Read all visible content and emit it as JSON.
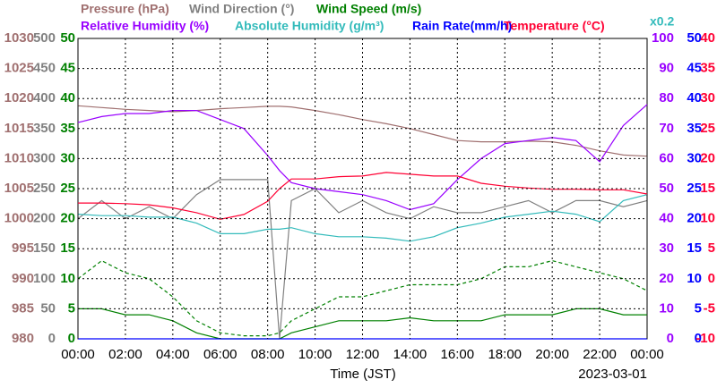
{
  "chart_data": {
    "type": "line",
    "x": [
      0,
      1,
      2,
      3,
      4,
      5,
      6,
      7,
      8,
      8.5,
      9,
      10,
      11,
      12,
      13,
      14,
      15,
      16,
      17,
      18,
      19,
      20,
      21,
      22,
      23,
      24
    ],
    "xlim": [
      0,
      24
    ],
    "xticks": [
      {
        "value": 0,
        "label": "00:00"
      },
      {
        "value": 2,
        "label": "02:00"
      },
      {
        "value": 4,
        "label": "04:00"
      },
      {
        "value": 6,
        "label": "06:00"
      },
      {
        "value": 8,
        "label": "08:00"
      },
      {
        "value": 10,
        "label": "10:00"
      },
      {
        "value": 12,
        "label": "12:00"
      },
      {
        "value": 14,
        "label": "14:00"
      },
      {
        "value": 16,
        "label": "16:00"
      },
      {
        "value": 18,
        "label": "18:00"
      },
      {
        "value": 20,
        "label": "20:00"
      },
      {
        "value": 22,
        "label": "22:00"
      },
      {
        "value": 24,
        "label": "00:00"
      }
    ],
    "xlabel": "Time (JST)",
    "date": "2023-03-01",
    "grid": true,
    "axes": [
      {
        "side": "left",
        "color": "#a07070",
        "lim": [
          980,
          1030
        ],
        "ticks": [
          980,
          985,
          990,
          995,
          1000,
          1005,
          1010,
          1015,
          1020,
          1025,
          1030
        ]
      },
      {
        "side": "left",
        "color": "#808080",
        "lim": [
          0,
          500
        ],
        "ticks": [
          0,
          50,
          100,
          150,
          200,
          250,
          300,
          350,
          400,
          450,
          500
        ]
      },
      {
        "side": "left",
        "color": "#008000",
        "lim": [
          0,
          50
        ],
        "ticks": [
          0,
          5,
          10,
          15,
          20,
          25,
          30,
          35,
          40,
          45,
          50
        ]
      },
      {
        "side": "right",
        "color": "#9900ff",
        "lim": [
          0,
          100
        ],
        "ticks": [
          0,
          10,
          20,
          30,
          40,
          50,
          60,
          70,
          80,
          90,
          100
        ]
      },
      {
        "side": "right",
        "color": "#33bbbb",
        "lim": [
          0,
          20
        ],
        "ticks": [],
        "scale_label": "x0.2"
      },
      {
        "side": "right",
        "color": "#0000ff",
        "lim": [
          0,
          50
        ],
        "ticks": [
          0,
          5,
          10,
          15,
          20,
          25,
          30,
          35,
          40,
          45,
          50
        ]
      },
      {
        "side": "right",
        "color": "#ff0033",
        "lim": [
          -10,
          40
        ],
        "ticks": [
          -10,
          -5,
          0,
          5,
          10,
          15,
          20,
          25,
          30,
          35,
          40
        ]
      }
    ],
    "series": [
      {
        "name": "Wind Direction (°)",
        "color": "#808080",
        "axis": 1,
        "values": [
          200,
          230,
          200,
          220,
          200,
          240,
          265,
          265,
          265,
          0,
          230,
          250,
          210,
          230,
          210,
          200,
          220,
          210,
          210,
          220,
          230,
          210,
          230,
          230,
          220,
          230
        ]
      },
      {
        "name": "Pressure (hPa)",
        "color": "#a07070",
        "axis": 0,
        "values": [
          1018.8,
          1018.5,
          1018.2,
          1018.0,
          1017.8,
          1018.0,
          1018.3,
          1018.5,
          1018.7,
          1018.7,
          1018.6,
          1018.0,
          1017.3,
          1016.5,
          1015.8,
          1015.0,
          1014.0,
          1013.0,
          1012.8,
          1012.8,
          1012.9,
          1012.8,
          1012.2,
          1011.3,
          1010.6,
          1010.4
        ]
      },
      {
        "name": "Relative Humidity (%)",
        "color": "#9900ff",
        "axis": 3,
        "values": [
          72,
          74,
          75,
          75,
          76,
          76,
          73,
          70,
          61,
          56,
          52,
          50,
          49,
          48,
          46,
          43,
          45,
          53,
          60,
          65,
          66,
          67,
          66,
          59,
          71,
          78
        ]
      },
      {
        "name": "Absolute Humidity (g/m³)",
        "color": "#33bbbb",
        "axis": 4,
        "values": [
          8.3,
          8.2,
          8.2,
          8.1,
          8.1,
          7.7,
          7.0,
          7.0,
          7.3,
          7.3,
          7.4,
          7.0,
          6.8,
          6.8,
          6.7,
          6.5,
          6.8,
          7.4,
          7.7,
          8.1,
          8.3,
          8.5,
          8.3,
          7.8,
          9.2,
          9.6
        ]
      },
      {
        "name": "Temperature (°C)",
        "color": "#ff0033",
        "axis": 6,
        "values": [
          12.6,
          12.6,
          12.5,
          12.3,
          11.8,
          11.0,
          9.9,
          10.7,
          12.9,
          15.0,
          16.6,
          16.6,
          17.0,
          17.1,
          17.7,
          17.4,
          17.1,
          17.1,
          15.9,
          15.4,
          15.1,
          14.9,
          14.9,
          14.8,
          14.8,
          14.1
        ]
      },
      {
        "color": "#008000",
        "axis": 2,
        "dashed": true,
        "values": [
          10,
          13,
          11,
          10,
          7,
          3,
          1,
          0.5,
          0.5,
          1,
          3,
          5,
          7,
          7,
          8,
          9,
          9,
          9,
          10,
          12,
          12,
          13,
          12,
          11,
          10,
          8
        ]
      },
      {
        "name": "Wind Speed (m/s)",
        "color": "#008000",
        "axis": 2,
        "values": [
          5,
          5,
          4,
          4,
          3,
          1,
          0,
          0,
          0,
          0,
          1,
          2,
          3,
          3,
          3,
          3.5,
          3,
          3,
          3,
          4,
          4,
          4,
          5,
          5,
          4,
          4
        ]
      },
      {
        "name": "Rain Rate(mm/h)",
        "color": "#0000ff",
        "axis": 5,
        "values": [
          0,
          0,
          0,
          0,
          0,
          0,
          0,
          0,
          0,
          0,
          0,
          0,
          0,
          0,
          0,
          0,
          0,
          0,
          0,
          0,
          0,
          0,
          0,
          0,
          0,
          0
        ]
      }
    ]
  }
}
